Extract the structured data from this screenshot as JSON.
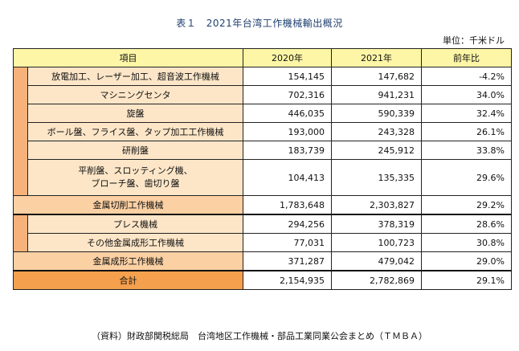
{
  "title": "表１　2021年台湾工作機械輸出概況",
  "unit": "単位：千米ドル",
  "header": {
    "item": "項目",
    "y2020": "2020年",
    "y2021": "2021年",
    "change": "前年比"
  },
  "cutting_rows": [
    {
      "label": "放電加工、レーザー加工、超音波工作機械",
      "y2020": "154,145",
      "y2021": "147,682",
      "change": "-4.2%"
    },
    {
      "label": "マシニングセンタ",
      "y2020": "702,316",
      "y2021": "941,231",
      "change": "34.0%"
    },
    {
      "label": "旋盤",
      "y2020": "446,035",
      "y2021": "590,339",
      "change": "32.4%"
    },
    {
      "label": "ボール盤、フライス盤、タップ加工工作機械",
      "y2020": "193,000",
      "y2021": "243,328",
      "change": "26.1%"
    },
    {
      "label": "研削盤",
      "y2020": "183,739",
      "y2021": "245,912",
      "change": "33.8%"
    },
    {
      "label1": "平削盤、スロッティング機、",
      "label2": "ブローチ盤、歯切り盤",
      "y2020": "104,413",
      "y2021": "135,335",
      "change": "29.6%"
    }
  ],
  "cutting_subtotal": {
    "label": "金属切削工作機械",
    "y2020": "1,783,648",
    "y2021": "2,303,827",
    "change": "29.2%"
  },
  "forming_rows": [
    {
      "label": "プレス機械",
      "y2020": "294,256",
      "y2021": "378,319",
      "change": "28.6%"
    },
    {
      "label": "その他金属成形工作機械",
      "y2020": "77,031",
      "y2021": "100,723",
      "change": "30.8%"
    }
  ],
  "forming_subtotal": {
    "label": "金属成形工作機械",
    "y2020": "371,287",
    "y2021": "479,042",
    "change": "29.0%"
  },
  "total": {
    "label": "合計",
    "y2020": "2,154,935",
    "y2021": "2,782,869",
    "change": "29.1%"
  },
  "source": "（資料）財政部関税総局　台湾地区工作機械・部品工業同業公会まとめ（ＴＭＢＡ）"
}
